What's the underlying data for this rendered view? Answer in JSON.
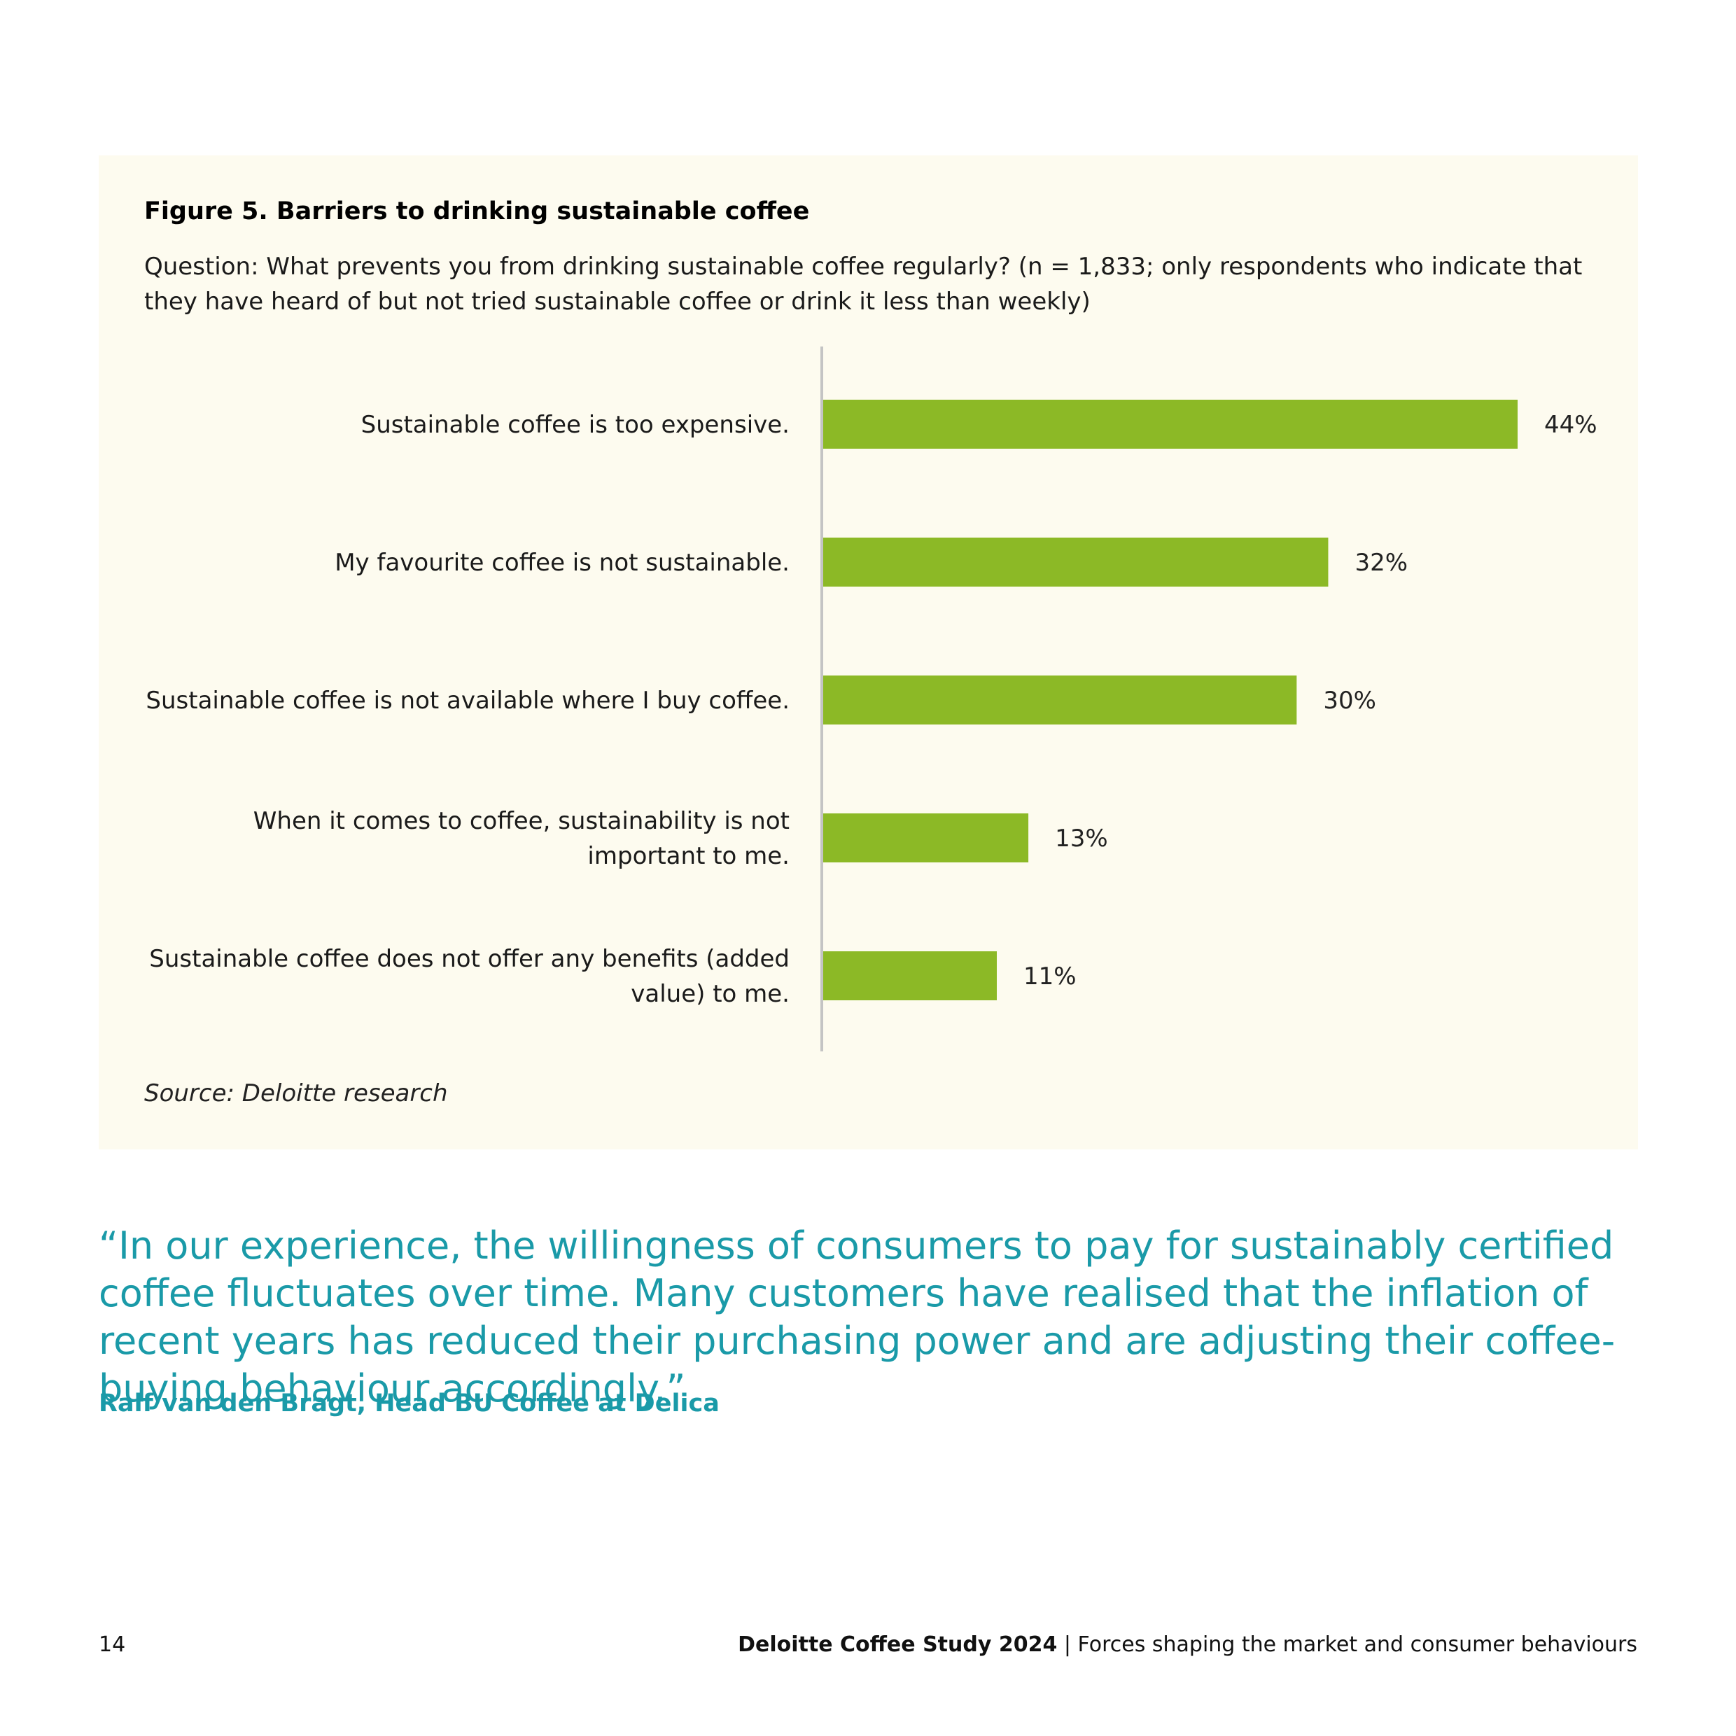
{
  "figure": {
    "title": "Figure 5. Barriers to drinking sustainable coffee",
    "question": "Question: What prevents you from drinking sustainable coffee regularly? (n = 1,833; only respondents who indicate that they have heard of but not tried sustainable coffee or drink it less than weekly)",
    "source": "Source: Deloitte research"
  },
  "chart_data": {
    "type": "bar",
    "orientation": "horizontal",
    "categories": [
      [
        "Sustainable coffee is too expensive."
      ],
      [
        "My favourite coffee is not sustainable."
      ],
      [
        "Sustainable coffee is not available where I buy coffee."
      ],
      [
        "When it comes to coffee, sustainability is not",
        "important to me."
      ],
      [
        "Sustainable coffee does not offer any benefits (added",
        "value) to me."
      ]
    ],
    "values": [
      44,
      32,
      30,
      13,
      11
    ],
    "value_labels": [
      "44%",
      "32%",
      "30%",
      "13%",
      "11%"
    ],
    "unit": "%",
    "bar_color": "#8cb926",
    "axis_color": "#c4c4c4",
    "xlim": [
      0,
      44
    ],
    "grid": false,
    "legend": "none"
  },
  "quote": {
    "text": "“In our experience, the willingness of consumers to pay for sustainably certified coffee fluctuates over time. Many customers have realised that the inflation of recent years has reduced their purchasing power and are adjusting their coffee-buying behaviour accordingly.”",
    "attribution": "Ralf van den Bragt, Head BU Coffee at Delica",
    "color": "#1a9aa8"
  },
  "footer": {
    "page_number": "14",
    "study": "Deloitte Coffee Study 2024",
    "separator": " | ",
    "section": "Forces shaping the market and consumer behaviours"
  }
}
